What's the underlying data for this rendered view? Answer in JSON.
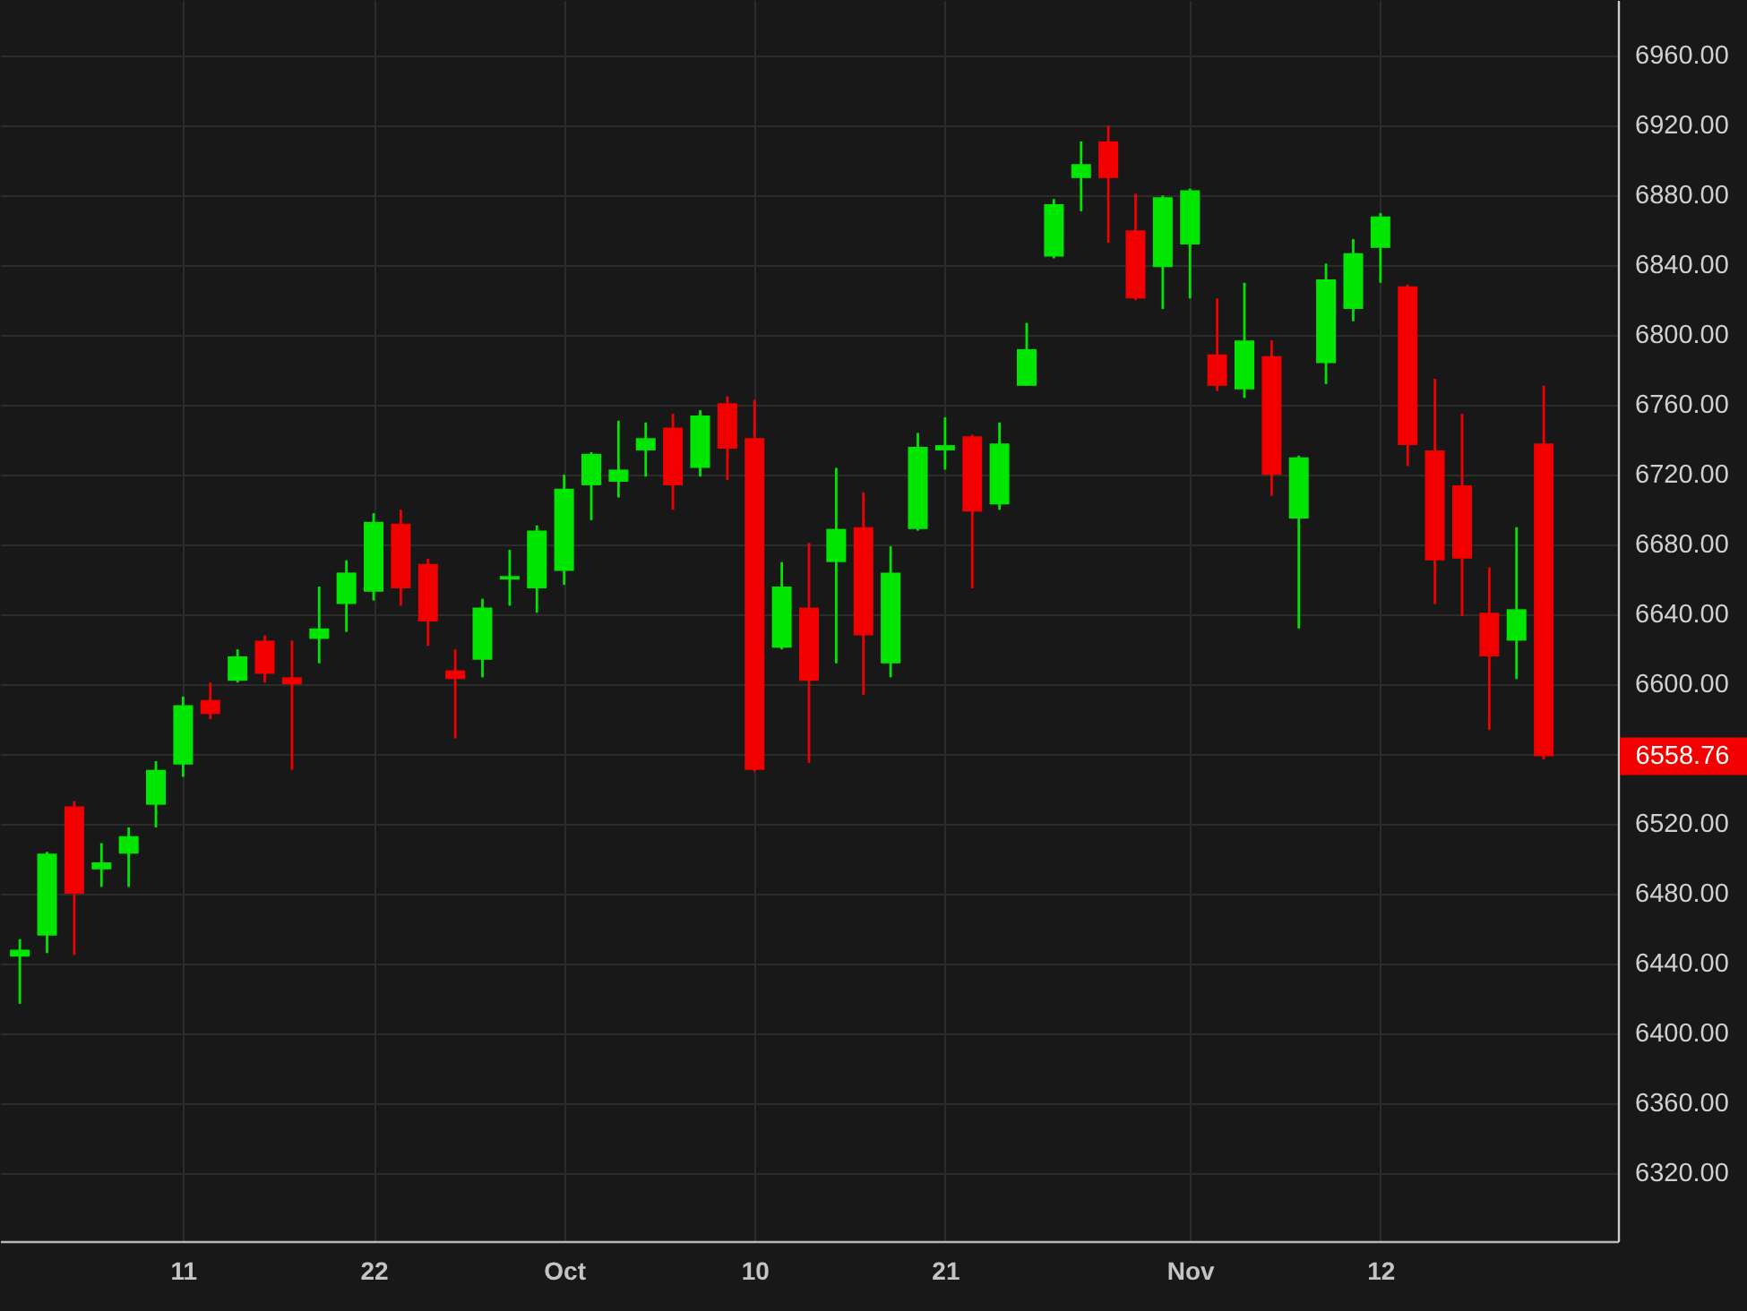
{
  "chart_data": {
    "type": "candlestick",
    "categories": [
      null,
      null,
      null,
      null,
      null,
      null,
      "11",
      null,
      null,
      null,
      null,
      null,
      null,
      "22",
      null,
      null,
      null,
      null,
      null,
      null,
      "Oct",
      null,
      null,
      null,
      null,
      null,
      null,
      "10",
      null,
      null,
      null,
      null,
      null,
      null,
      "21",
      null,
      null,
      null,
      null,
      null,
      null,
      null,
      null,
      "Nov",
      null,
      null,
      null,
      null,
      null,
      null,
      "12",
      null,
      null,
      null,
      null,
      null,
      null
    ],
    "ohlc": [
      [
        6444,
        6454,
        6417,
        6448
      ],
      [
        6456,
        6504,
        6446,
        6503
      ],
      [
        6530,
        6533,
        6445,
        6480
      ],
      [
        6494,
        6509,
        6484,
        6498
      ],
      [
        6503,
        6518,
        6484,
        6513
      ],
      [
        6531,
        6556,
        6518,
        6551
      ],
      [
        6554,
        6593,
        6547,
        6588
      ],
      [
        6591,
        6601,
        6580,
        6583
      ],
      [
        6602,
        6620,
        6601,
        6616
      ],
      [
        6625,
        6628,
        6601,
        6606
      ],
      [
        6604,
        6625,
        6551,
        6600
      ],
      [
        6626,
        6656,
        6612,
        6632
      ],
      [
        6646,
        6671,
        6630,
        6664
      ],
      [
        6653,
        6698,
        6648,
        6693
      ],
      [
        6692,
        6700,
        6645,
        6655
      ],
      [
        6669,
        6672,
        6622,
        6636
      ],
      [
        6608,
        6620,
        6569,
        6603
      ],
      [
        6614,
        6649,
        6604,
        6644
      ],
      [
        6660,
        6677,
        6645,
        6662
      ],
      [
        6655,
        6691,
        6641,
        6688
      ],
      [
        6665,
        6720,
        6657,
        6712
      ],
      [
        6714,
        6733,
        6694,
        6732
      ],
      [
        6716,
        6751,
        6707,
        6723
      ],
      [
        6734,
        6750,
        6719,
        6741
      ],
      [
        6747,
        6755,
        6700,
        6714
      ],
      [
        6724,
        6757,
        6719,
        6754
      ],
      [
        6761,
        6765,
        6717,
        6735
      ],
      [
        6741,
        6763,
        6550,
        6551
      ],
      [
        6621,
        6670,
        6620,
        6656
      ],
      [
        6644,
        6681,
        6555,
        6602
      ],
      [
        6670,
        6724,
        6612,
        6689
      ],
      [
        6690,
        6710,
        6594,
        6628
      ],
      [
        6612,
        6679,
        6604,
        6664
      ],
      [
        6689,
        6744,
        6688,
        6736
      ],
      [
        6734,
        6753,
        6723,
        6737
      ],
      [
        6742,
        6743,
        6655,
        6699
      ],
      [
        6703,
        6750,
        6700,
        6738
      ],
      [
        6771,
        6807,
        6771,
        6792
      ],
      [
        6845,
        6878,
        6844,
        6875
      ],
      [
        6890,
        6911,
        6871,
        6898
      ],
      [
        6911,
        6920,
        6853,
        6890
      ],
      [
        6860,
        6881,
        6820,
        6821
      ],
      [
        6839,
        6880,
        6815,
        6879
      ],
      [
        6852,
        6884,
        6821,
        6883
      ],
      [
        6789,
        6821,
        6768,
        6771
      ],
      [
        6769,
        6830,
        6764,
        6797
      ],
      [
        6788,
        6797,
        6708,
        6720
      ],
      [
        6695,
        6731,
        6632,
        6730
      ],
      [
        6784,
        6841,
        6772,
        6832
      ],
      [
        6815,
        6855,
        6808,
        6847
      ],
      [
        6850,
        6870,
        6830,
        6868
      ],
      [
        6828,
        6829,
        6725,
        6737
      ],
      [
        6734,
        6775,
        6646,
        6671
      ],
      [
        6714,
        6755,
        6639,
        6672
      ],
      [
        6641,
        6667,
        6574,
        6616
      ],
      [
        6625,
        6690,
        6603,
        6643
      ],
      [
        6738,
        6771,
        6557,
        6558.76
      ]
    ],
    "colors": [
      "#00e600",
      "#00e600",
      "#f20000",
      "#00e600",
      "#00e600",
      "#00e600",
      "#00e600",
      "#f20000",
      "#00e600",
      "#f20000",
      "#f20000",
      "#00e600",
      "#00e600",
      "#00e600",
      "#f20000",
      "#f20000",
      "#f20000",
      "#00e600",
      "#00e600",
      "#00e600",
      "#00e600",
      "#00e600",
      "#00e600",
      "#00e600",
      "#f20000",
      "#00e600",
      "#f20000",
      "#f20000",
      "#00e600",
      "#f20000",
      "#00e600",
      "#f20000",
      "#00e600",
      "#00e600",
      "#00e600",
      "#f20000",
      "#00e600",
      "#00e600",
      "#00e600",
      "#00e600",
      "#f20000",
      "#f20000",
      "#00e600",
      "#00e600",
      "#f20000",
      "#00e600",
      "#f20000",
      "#00e600",
      "#00e600",
      "#00e600",
      "#00e600",
      "#f20000",
      "#f20000",
      "#f20000",
      "#f20000",
      "#00e600",
      "#f20000"
    ],
    "ylim": [
      6281,
      6992
    ],
    "yticks": [
      {
        "value": 6320,
        "label": "6320.00"
      },
      {
        "value": 6360,
        "label": "6360.00"
      },
      {
        "value": 6400,
        "label": "6400.00"
      },
      {
        "value": 6440,
        "label": "6440.00"
      },
      {
        "value": 6480,
        "label": "6480.00"
      },
      {
        "value": 6520,
        "label": "6520.00"
      },
      {
        "value": 6560,
        "label": null
      },
      {
        "value": 6600,
        "label": "6600.00"
      },
      {
        "value": 6640,
        "label": "6640.00"
      },
      {
        "value": 6680,
        "label": "6680.00"
      },
      {
        "value": 6720,
        "label": "6720.00"
      },
      {
        "value": 6760,
        "label": "6760.00"
      },
      {
        "value": 6800,
        "label": "6800.00"
      },
      {
        "value": 6840,
        "label": "6840.00"
      },
      {
        "value": 6880,
        "label": "6880.00"
      },
      {
        "value": 6920,
        "label": "6920.00"
      },
      {
        "value": 6960,
        "label": "6960.00"
      }
    ],
    "grid": true,
    "annotations": [
      "6558.76"
    ]
  }
}
